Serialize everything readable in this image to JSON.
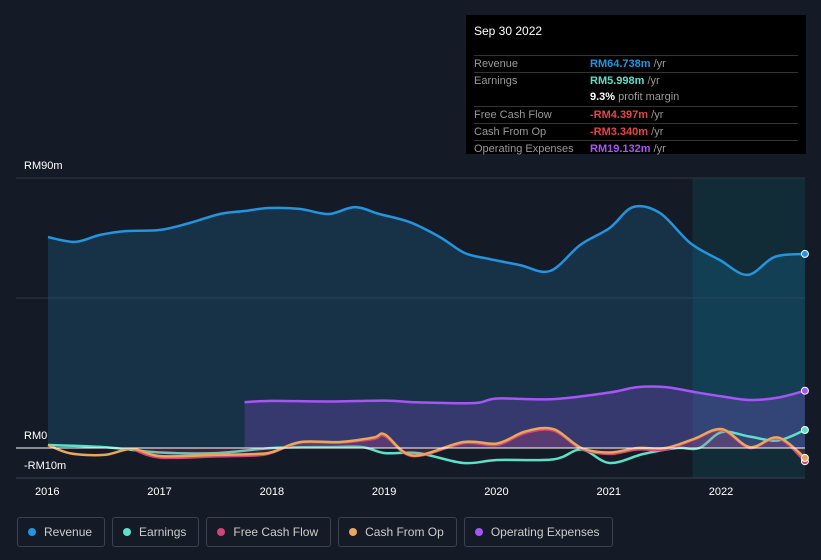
{
  "tooltip": {
    "date": "Sep 30 2022",
    "rows": [
      {
        "label": "Revenue",
        "value": "RM64.738m",
        "unit": " /yr",
        "color": "#2394df"
      },
      {
        "label": "Earnings",
        "value": "RM5.998m",
        "unit": " /yr",
        "color": "#5de0c9"
      },
      {
        "label": "",
        "value": "9.3%",
        "unit": " profit margin",
        "color": "#ffffff"
      },
      {
        "label": "Free Cash Flow",
        "value": "-RM4.397m",
        "unit": " /yr",
        "color": "#e64545"
      },
      {
        "label": "Cash From Op",
        "value": "-RM3.340m",
        "unit": " /yr",
        "color": "#e64545"
      },
      {
        "label": "Operating Expenses",
        "value": "RM19.132m",
        "unit": " /yr",
        "color": "#a855f7"
      }
    ]
  },
  "chart_data": {
    "type": "line",
    "ylabel_top": "RM90m",
    "ylabel_zero": "RM0",
    "ylabel_neg": "-RM10m",
    "ylim": [
      -10,
      90
    ],
    "xlim": [
      2015.75,
      2022.74
    ],
    "xticks": [
      "2016",
      "2017",
      "2018",
      "2019",
      "2020",
      "2021",
      "2022"
    ],
    "forecast_start": 2021.74,
    "series": [
      {
        "name": "Revenue",
        "color": "#2394df",
        "fill": true,
        "x": [
          2016,
          2016.24,
          2016.46,
          2016.69,
          2017,
          2017.26,
          2017.53,
          2017.75,
          2017.97,
          2018.24,
          2018.5,
          2018.73,
          2018.95,
          2019.22,
          2019.49,
          2019.71,
          2019.93,
          2020.2,
          2020.47,
          2020.74,
          2021,
          2021.21,
          2021.45,
          2021.72,
          2021.98,
          2022.23,
          2022.47,
          2022.74
        ],
        "y": [
          70.3,
          68.7,
          71,
          72.3,
          72.7,
          75,
          78,
          79,
          80,
          79.7,
          78,
          80.3,
          78,
          75.3,
          70.3,
          65,
          63,
          61,
          59,
          67.7,
          73.3,
          80.3,
          78.3,
          68.3,
          62.7,
          57.7,
          63.7,
          64.7
        ]
      },
      {
        "name": "Operating Expenses",
        "color": "#a855f7",
        "fill": true,
        "x": [
          2017.75,
          2018,
          2018.5,
          2019,
          2019.3,
          2019.8,
          2020,
          2020.5,
          2021,
          2021.25,
          2021.5,
          2021.75,
          2022,
          2022.25,
          2022.5,
          2022.74
        ],
        "y": [
          15.3,
          15.7,
          15.5,
          15.8,
          15.2,
          15,
          16.5,
          16.3,
          18.5,
          20.3,
          20.3,
          18.7,
          17.2,
          16,
          16.8,
          19.1
        ]
      },
      {
        "name": "Earnings",
        "color": "#5de0c9",
        "fill": false,
        "x": [
          2016,
          2016.5,
          2017,
          2017.5,
          2018,
          2018.5,
          2018.8,
          2019,
          2019.3,
          2019.7,
          2020,
          2020.5,
          2020.75,
          2021,
          2021.3,
          2021.6,
          2021.8,
          2022,
          2022.25,
          2022.5,
          2022.74
        ],
        "y": [
          1,
          0.3,
          -1.5,
          -1.7,
          0,
          0.3,
          0.3,
          -1.7,
          -1.7,
          -5,
          -4,
          -3.8,
          -0.5,
          -5,
          -2,
          0,
          0,
          5.3,
          3.8,
          2.5,
          6
        ]
      },
      {
        "name": "Free Cash Flow",
        "color": "#d1437a",
        "fill": true,
        "x": [
          2016.75,
          2017,
          2017.5,
          2017.85,
          2018,
          2018.25,
          2018.6,
          2018.9,
          2019,
          2019.25,
          2019.7,
          2020,
          2020.25,
          2020.5,
          2020.75,
          2021,
          2021.25,
          2021.5,
          2021.75,
          2022,
          2022.25,
          2022.5,
          2022.74
        ],
        "y": [
          -0.3,
          -3.2,
          -2.8,
          -2.5,
          -1.5,
          1.8,
          1.8,
          3,
          4,
          -2.7,
          1.6,
          1,
          5,
          5.8,
          -0.3,
          -2,
          -0.5,
          -0.5,
          2.8,
          6,
          0,
          3.3,
          -4.4
        ]
      },
      {
        "name": "Cash From Op",
        "color": "#e8a75a",
        "fill": false,
        "x": [
          2016,
          2016.2,
          2016.5,
          2016.75,
          2017,
          2017.5,
          2017.85,
          2018,
          2018.25,
          2018.6,
          2018.9,
          2019,
          2019.25,
          2019.7,
          2020,
          2020.25,
          2020.5,
          2020.75,
          2021,
          2021.25,
          2021.5,
          2021.75,
          2022,
          2022.25,
          2022.5,
          2022.74
        ],
        "y": [
          1,
          -1.8,
          -2.3,
          -0.3,
          -2.7,
          -2.3,
          -2,
          -1.3,
          2,
          2,
          3.5,
          4.5,
          -2.5,
          2,
          1.5,
          5.5,
          6.3,
          0,
          -1.5,
          0,
          0,
          3,
          6.3,
          0.3,
          3.5,
          -3.3
        ]
      }
    ]
  },
  "legend": [
    {
      "label": "Revenue",
      "color": "#2394df"
    },
    {
      "label": "Earnings",
      "color": "#5de0c9"
    },
    {
      "label": "Free Cash Flow",
      "color": "#d1437a"
    },
    {
      "label": "Cash From Op",
      "color": "#e8a75a"
    },
    {
      "label": "Operating Expenses",
      "color": "#a855f7"
    }
  ]
}
